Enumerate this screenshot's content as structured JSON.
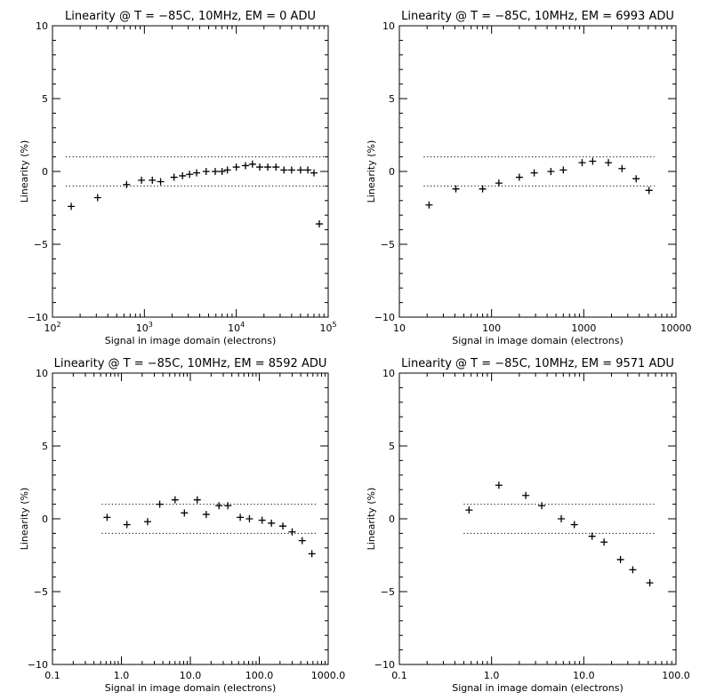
{
  "chart_data": [
    {
      "type": "scatter",
      "title": "Linearity @ T = −85C, 10MHz, EM = 0 ADU",
      "xlabel": "Signal in image domain (electrons)",
      "ylabel": "Linearity (%)",
      "xscale": "log",
      "xlim": [
        100,
        100000
      ],
      "ylim": [
        -10,
        10
      ],
      "xticks": [
        100,
        1000,
        10000,
        100000
      ],
      "xtick_labels": [
        {
          "base": "10",
          "exp": "2"
        },
        {
          "base": "10",
          "exp": "3"
        },
        {
          "base": "10",
          "exp": "4"
        },
        {
          "base": "10",
          "exp": "5"
        }
      ],
      "yticks": [
        -10,
        -5,
        0,
        5,
        10
      ],
      "ytick_labels": [
        "−10",
        "−5",
        "0",
        "5",
        "10"
      ],
      "reference_lines": [
        1,
        -1
      ],
      "marker": "+",
      "x": [
        160,
        310,
        640,
        930,
        1220,
        1500,
        2100,
        2600,
        3100,
        3700,
        4700,
        5900,
        7000,
        8000,
        10000,
        12600,
        15000,
        18000,
        22000,
        27000,
        33000,
        40000,
        50000,
        60000,
        70000,
        80000
      ],
      "y": [
        -2.4,
        -1.8,
        -0.9,
        -0.6,
        -0.6,
        -0.7,
        -0.4,
        -0.3,
        -0.2,
        -0.1,
        0.0,
        0.0,
        0.0,
        0.1,
        0.3,
        0.4,
        0.5,
        0.3,
        0.3,
        0.3,
        0.1,
        0.1,
        0.1,
        0.1,
        -0.1,
        -3.6
      ]
    },
    {
      "type": "scatter",
      "title": "Linearity @ T = −85C, 10MHz, EM = 6993 ADU",
      "xlabel": "Signal in image domain (electrons)",
      "ylabel": "Linearity (%)",
      "xscale": "log",
      "xlim": [
        10,
        10000
      ],
      "ylim": [
        -10,
        10
      ],
      "xticks": [
        10,
        100,
        1000,
        10000
      ],
      "xtick_labels": [
        "10",
        "100",
        "1000",
        "10000"
      ],
      "yticks": [
        -10,
        -5,
        0,
        5,
        10
      ],
      "ytick_labels": [
        "−10",
        "−5",
        "0",
        "5",
        "10"
      ],
      "reference_lines": [
        1,
        -1
      ],
      "marker": "+",
      "x": [
        21,
        41,
        80,
        120,
        200,
        290,
        440,
        600,
        960,
        1250,
        1850,
        2600,
        3700,
        5100
      ],
      "y": [
        -2.3,
        -1.2,
        -1.2,
        -0.8,
        -0.4,
        -0.1,
        0.0,
        0.1,
        0.6,
        0.7,
        0.6,
        0.2,
        -0.5,
        -1.3
      ]
    },
    {
      "type": "scatter",
      "title": "Linearity @ T = −85C, 10MHz, EM = 8592 ADU",
      "xlabel": "Signal in image domain (electrons)",
      "ylabel": "Linearity (%)",
      "xscale": "log",
      "xlim": [
        0.1,
        1000
      ],
      "ylim": [
        -10,
        10
      ],
      "xticks": [
        0.1,
        1,
        10,
        100,
        1000
      ],
      "xtick_labels": [
        "0.1",
        "1.0",
        "10.0",
        "100.0",
        "1000.0"
      ],
      "yticks": [
        -10,
        -5,
        0,
        5,
        10
      ],
      "ytick_labels": [
        "−10",
        "−5",
        "0",
        "5",
        "10"
      ],
      "reference_lines": [
        1,
        -1
      ],
      "marker": "+",
      "x": [
        0.62,
        1.2,
        2.4,
        3.6,
        6.0,
        8.2,
        12.6,
        17.0,
        26.0,
        35.0,
        53.0,
        72.0,
        110.0,
        150.0,
        220.0,
        300.0,
        420.0,
        580.0
      ],
      "y": [
        0.1,
        -0.4,
        -0.2,
        1.0,
        1.3,
        0.4,
        1.3,
        0.3,
        0.9,
        0.9,
        0.1,
        0.0,
        -0.1,
        -0.3,
        -0.5,
        -0.9,
        -1.5,
        -2.4
      ]
    },
    {
      "type": "scatter",
      "title": "Linearity @ T = −85C, 10MHz, EM = 9571 ADU",
      "xlabel": "Signal in image domain (electrons)",
      "ylabel": "Linearity (%)",
      "xscale": "log",
      "xlim": [
        0.1,
        100
      ],
      "ylim": [
        -10,
        10
      ],
      "xticks": [
        0.1,
        1,
        10,
        100
      ],
      "xtick_labels": [
        "0.1",
        "1.0",
        "10.0",
        "100.0"
      ],
      "yticks": [
        -10,
        -5,
        0,
        5,
        10
      ],
      "ytick_labels": [
        "−10",
        "−5",
        "0",
        "5",
        "10"
      ],
      "reference_lines": [
        1,
        -1
      ],
      "marker": "+",
      "x": [
        0.57,
        1.2,
        2.35,
        3.5,
        5.7,
        7.9,
        12.3,
        16.6,
        25.0,
        34.0,
        52.0
      ],
      "y": [
        0.6,
        2.3,
        1.6,
        0.9,
        0.0,
        -0.4,
        -1.2,
        -1.6,
        -2.8,
        -3.5,
        -4.4
      ]
    }
  ]
}
